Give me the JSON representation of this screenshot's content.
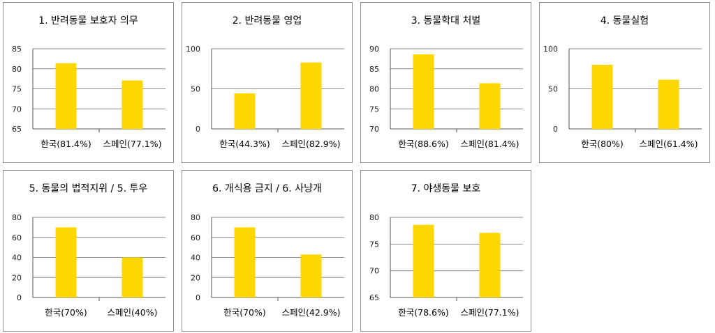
{
  "chart_data": [
    {
      "type": "bar",
      "title": "1. 반려동물 보호자 의무",
      "categories": [
        "한국(81.4%)",
        "스페인(77.1%)"
      ],
      "values": [
        81.4,
        77.1
      ],
      "ylim": [
        65,
        85
      ],
      "yticks": [
        65,
        70,
        75,
        80,
        85
      ],
      "grid": true,
      "color": "#FFD700"
    },
    {
      "type": "bar",
      "title": "2. 반려동물 영업",
      "categories": [
        "한국(44.3%)",
        "스페인(82.9%)"
      ],
      "values": [
        44.3,
        82.9
      ],
      "ylim": [
        0,
        100
      ],
      "yticks": [
        0,
        50,
        100
      ],
      "grid": true,
      "color": "#FFD700"
    },
    {
      "type": "bar",
      "title": "3. 동물학대 처벌",
      "categories": [
        "한국(88.6%)",
        "스페인(81.4%)"
      ],
      "values": [
        88.6,
        81.4
      ],
      "ylim": [
        70,
        90
      ],
      "yticks": [
        70,
        75,
        80,
        85,
        90
      ],
      "grid": true,
      "color": "#FFD700"
    },
    {
      "type": "bar",
      "title": "4. 동물실험",
      "categories": [
        "한국(80%)",
        "스페인(61.4%)"
      ],
      "values": [
        80,
        61.4
      ],
      "ylim": [
        0,
        100
      ],
      "yticks": [
        0,
        50,
        100
      ],
      "grid": true,
      "color": "#FFD700"
    },
    {
      "type": "bar",
      "title": "5. 동물의 법적지위 / 5. 투우",
      "categories": [
        "한국(70%)",
        "스페인(40%)"
      ],
      "values": [
        70,
        40
      ],
      "ylim": [
        0,
        80
      ],
      "yticks": [
        0,
        20,
        40,
        60,
        80
      ],
      "grid": true,
      "color": "#FFD700"
    },
    {
      "type": "bar",
      "title": "6. 개식용 금지 / 6. 사냥개",
      "categories": [
        "한국(70%)",
        "스페인(42.9%)"
      ],
      "values": [
        70,
        42.9
      ],
      "ylim": [
        0,
        80
      ],
      "yticks": [
        0,
        20,
        40,
        60,
        80
      ],
      "grid": true,
      "color": "#FFD700"
    },
    {
      "type": "bar",
      "title": "7. 야생동물 보호",
      "categories": [
        "한국(78.6%)",
        "스페인(77.1%)"
      ],
      "values": [
        78.6,
        77.1
      ],
      "ylim": [
        65,
        80
      ],
      "yticks": [
        65,
        70,
        75,
        80
      ],
      "grid": true,
      "color": "#FFD700"
    }
  ]
}
